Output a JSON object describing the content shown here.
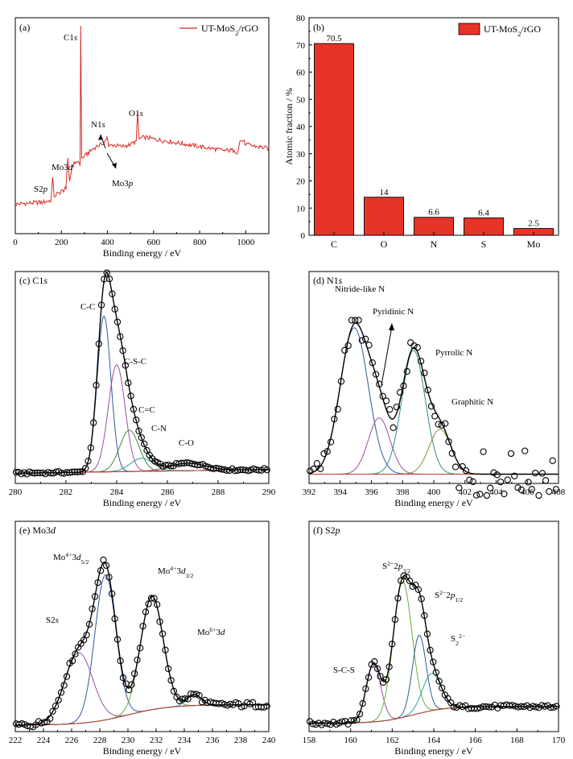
{
  "chart_data": [
    {
      "id": "a",
      "panel_label": "(a)",
      "type": "line",
      "xlabel": "Binding energy / eV",
      "ylabel": "",
      "xlim": [
        0,
        1100
      ],
      "ylim": [
        0,
        100
      ],
      "xticks": [
        0,
        200,
        400,
        600,
        800,
        1000
      ],
      "legend": {
        "label": "UT-MoS₂/rGO",
        "position": "top-right",
        "color": "#d62a24"
      },
      "series": [
        {
          "name": "UT-MoS₂/rGO",
          "color": "#d62a24",
          "points": [
            [
              0,
              7
            ],
            [
              60,
              7.5
            ],
            [
              120,
              8
            ],
            [
              155,
              9
            ],
            [
              162,
              21
            ],
            [
              168,
              11
            ],
            [
              190,
              13
            ],
            [
              220,
              15
            ],
            [
              228,
              31
            ],
            [
              235,
              19
            ],
            [
              248,
              27
            ],
            [
              262,
              29
            ],
            [
              275,
              29
            ],
            [
              281,
              27
            ],
            [
              284,
              100
            ],
            [
              288,
              31
            ],
            [
              300,
              32
            ],
            [
              350,
              37
            ],
            [
              375,
              38
            ],
            [
              390,
              40
            ],
            [
              398,
              42
            ],
            [
              405,
              37
            ],
            [
              420,
              38
            ],
            [
              460,
              37
            ],
            [
              500,
              38
            ],
            [
              525,
              40
            ],
            [
              531,
              55
            ],
            [
              537,
              41
            ],
            [
              560,
              42
            ],
            [
              600,
              41
            ],
            [
              650,
              40
            ],
            [
              700,
              39
            ],
            [
              750,
              38
            ],
            [
              800,
              37
            ],
            [
              850,
              36
            ],
            [
              900,
              35
            ],
            [
              950,
              35
            ],
            [
              965,
              34
            ],
            [
              975,
              40
            ],
            [
              990,
              40
            ],
            [
              1000,
              38
            ],
            [
              1050,
              37
            ],
            [
              1100,
              36
            ]
          ]
        }
      ],
      "annotations": [
        {
          "text": "C1s",
          "x": 284
        },
        {
          "text": "O1s",
          "x": 531
        },
        {
          "text": "N1s",
          "x": 398
        },
        {
          "text": "Mo3d",
          "x": 228
        },
        {
          "text": "Mo3p",
          "x": 395
        },
        {
          "text": "S2p",
          "x": 162
        }
      ]
    },
    {
      "id": "b",
      "panel_label": "(b)",
      "type": "bar",
      "xlabel": "",
      "ylabel": "Atomic fraction / %",
      "ylim": [
        0,
        80
      ],
      "yticks": [
        0,
        10,
        20,
        30,
        40,
        50,
        60,
        70,
        80
      ],
      "categories": [
        "C",
        "O",
        "N",
        "S",
        "Mo"
      ],
      "values": [
        70.5,
        14,
        6.6,
        6.4,
        2.5
      ],
      "value_labels": [
        "70.5",
        "14",
        "6.6",
        "6.4",
        "2.5"
      ],
      "legend": {
        "label": "UT-MoS₂/rGO",
        "position": "top-right",
        "color": "#e83329"
      }
    },
    {
      "id": "c",
      "panel_label": "(c) C1s",
      "type": "line",
      "xlabel": "Binding energy / eV",
      "xlim": [
        280,
        290
      ],
      "xticks": [
        280,
        282,
        284,
        286,
        288,
        290
      ],
      "peaks": [
        {
          "name": "C-C",
          "center": 283.5,
          "height": 0.83,
          "width": 0.27,
          "color": "#2d5a9e"
        },
        {
          "name": "C-S-C",
          "center": 284.0,
          "height": 0.57,
          "width": 0.33,
          "color": "#9a4ea0"
        },
        {
          "name": "C=C",
          "center": 284.5,
          "height": 0.22,
          "width": 0.38,
          "color": "#3d8a4a"
        },
        {
          "name": "C-N",
          "center": 285.0,
          "height": 0.07,
          "width": 0.45,
          "color": "#2aa3a8"
        },
        {
          "name": "C-O",
          "center": 286.8,
          "height": 0.04,
          "width": 0.7,
          "color": "#cc3b3b"
        }
      ],
      "labels": [
        "C-C",
        "C-S-C",
        "C=C",
        "C-N",
        "C-O"
      ]
    },
    {
      "id": "d",
      "panel_label": "(d) N1s",
      "type": "line",
      "xlabel": "Binding energy / eV",
      "xlim": [
        392,
        408
      ],
      "xticks": [
        392,
        394,
        396,
        398,
        400,
        402,
        404,
        406,
        408
      ],
      "peaks": [
        {
          "name": "Nitride-like N",
          "center": 394.9,
          "height": 0.78,
          "width": 0.9,
          "color": "#2d5a9e"
        },
        {
          "name": "",
          "center": 396.5,
          "height": 0.3,
          "width": 0.7,
          "color": "#9a4ea0"
        },
        {
          "name": "Pyrrolic N",
          "center": 398.7,
          "height": 0.66,
          "width": 0.75,
          "color": "#2a8f8c"
        },
        {
          "name": "Graphitic N",
          "center": 400.4,
          "height": 0.24,
          "width": 0.7,
          "color": "#8c8c2e"
        }
      ],
      "labels": [
        "Nitride-like N",
        "Pyridinic N",
        "Pyrrolic N",
        "Graphitic N"
      ]
    },
    {
      "id": "e",
      "panel_label": "(e) Mo3d",
      "type": "line",
      "xlabel": "Binding energy / eV",
      "xlim": [
        222,
        240
      ],
      "xticks": [
        222,
        224,
        226,
        228,
        230,
        232,
        234,
        236,
        238,
        240
      ],
      "peaks": [
        {
          "name": "S2s",
          "center": 226.5,
          "height": 0.38,
          "width": 1.0,
          "color": "#9a4ea0"
        },
        {
          "name": "Mo4+3d5/2",
          "center": 228.4,
          "height": 0.78,
          "width": 0.75,
          "color": "#2d5a9e"
        },
        {
          "name": "Mo4+3d3/2",
          "center": 231.7,
          "height": 0.61,
          "width": 0.8,
          "color": "#6aad3a"
        },
        {
          "name": "Mo6+3d",
          "center": 234.7,
          "height": 0.06,
          "width": 0.5,
          "color": "#2aa3a8"
        }
      ],
      "labels": [
        "S2s",
        "Mo4+3d5/2",
        "Mo4+3d3/2",
        "Mo6+3d"
      ]
    },
    {
      "id": "f",
      "panel_label": "(f) S2p",
      "type": "line",
      "xlabel": "Binding energy / eV",
      "xlim": [
        158,
        170
      ],
      "xticks": [
        158,
        160,
        162,
        164,
        166,
        168,
        170
      ],
      "peaks": [
        {
          "name": "S-C-S",
          "center": 161.1,
          "height": 0.31,
          "width": 0.35,
          "color": "#9a4ea0"
        },
        {
          "name": "S2- 2p3/2",
          "center": 162.5,
          "height": 0.73,
          "width": 0.45,
          "color": "#6aad3a"
        },
        {
          "name": "S2- 2p1/2",
          "center": 163.3,
          "height": 0.42,
          "width": 0.33,
          "color": "#2d5a9e"
        },
        {
          "name": "S2 2-",
          "center": 163.9,
          "height": 0.2,
          "width": 0.45,
          "color": "#2aa3a8"
        }
      ],
      "labels": [
        "S-C-S",
        "S²⁻2p3/2",
        "S²⁻2p1/2",
        "S₂²⁻"
      ]
    }
  ]
}
